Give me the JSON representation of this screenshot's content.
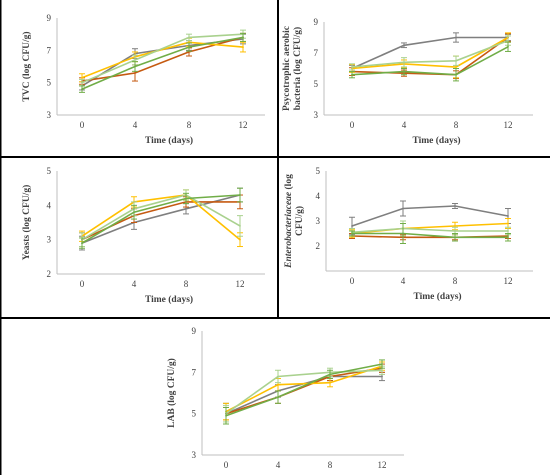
{
  "chart_data": [
    {
      "id": "tvc",
      "type": "line",
      "ylabel": [
        "TVC (log CFU/g)"
      ],
      "xlabel": "Time (days)",
      "x": [
        "0",
        "4",
        "8",
        "12"
      ],
      "ylim": [
        3,
        9
      ],
      "yticks": [
        "3",
        "5",
        "7",
        "9"
      ],
      "series": [
        {
          "color": "#7f7f7f",
          "values": [
            4.8,
            6.8,
            7.3,
            7.7
          ],
          "err": [
            0.25,
            0.3,
            0.3,
            0.3
          ]
        },
        {
          "color": "#c55a11",
          "values": [
            5.1,
            5.6,
            6.9,
            7.8
          ],
          "err": [
            0.2,
            0.5,
            0.25,
            0.25
          ]
        },
        {
          "color": "#ffc000",
          "values": [
            5.3,
            6.6,
            7.5,
            7.2
          ],
          "err": [
            0.25,
            0.3,
            0.25,
            0.3
          ]
        },
        {
          "color": "#a9d18e",
          "values": [
            5.0,
            6.4,
            7.8,
            8.0
          ],
          "err": [
            0.2,
            0.3,
            0.2,
            0.25
          ]
        },
        {
          "color": "#70ad47",
          "values": [
            4.6,
            6.0,
            7.2,
            7.8
          ],
          "err": [
            0.2,
            0.3,
            0.25,
            0.25
          ]
        }
      ]
    },
    {
      "id": "psychrotrophic",
      "type": "line",
      "ylabel": [
        "Psycotrophic aerobic",
        "bacteria (log CFU/g)"
      ],
      "xlabel": "Time (days)",
      "x": [
        "0",
        "4",
        "8",
        "12"
      ],
      "ylim": [
        3,
        9
      ],
      "yticks": [
        "3",
        "5",
        "7",
        "9"
      ],
      "series": [
        {
          "color": "#7f7f7f",
          "values": [
            6.0,
            7.5,
            8.0,
            8.0
          ],
          "err": [
            0.2,
            0.15,
            0.3,
            0.2
          ]
        },
        {
          "color": "#c55a11",
          "values": [
            5.8,
            5.7,
            5.6,
            8.0
          ],
          "err": [
            0.25,
            0.2,
            0.25,
            0.25
          ]
        },
        {
          "color": "#ffc000",
          "values": [
            6.0,
            6.3,
            6.1,
            8.0
          ],
          "err": [
            0.25,
            0.25,
            0.7,
            0.3
          ]
        },
        {
          "color": "#a9d18e",
          "values": [
            6.1,
            6.4,
            6.5,
            7.8
          ],
          "err": [
            0.2,
            0.3,
            0.3,
            0.3
          ]
        },
        {
          "color": "#70ad47",
          "values": [
            5.6,
            5.8,
            5.6,
            7.4
          ],
          "err": [
            0.2,
            0.2,
            0.4,
            0.3
          ]
        }
      ]
    },
    {
      "id": "yeasts",
      "type": "line",
      "ylabel": [
        "Yeasts (log CFU/g)"
      ],
      "xlabel": "Time (days)",
      "x": [
        "0",
        "4",
        "8",
        "12"
      ],
      "ylim": [
        2,
        5
      ],
      "yticks": [
        "2",
        "3",
        "4",
        "5"
      ],
      "series": [
        {
          "color": "#7f7f7f",
          "values": [
            2.9,
            3.5,
            3.9,
            4.3
          ],
          "err": [
            0.2,
            0.2,
            0.15,
            0.2
          ]
        },
        {
          "color": "#c55a11",
          "values": [
            3.0,
            3.7,
            4.1,
            4.1
          ],
          "err": [
            0.2,
            0.2,
            0.15,
            0.2
          ]
        },
        {
          "color": "#ffc000",
          "values": [
            3.1,
            4.1,
            4.3,
            3.0
          ],
          "err": [
            0.15,
            0.15,
            0.15,
            0.2
          ]
        },
        {
          "color": "#a9d18e",
          "values": [
            3.0,
            3.9,
            4.3,
            3.4
          ],
          "err": [
            0.2,
            0.2,
            0.15,
            0.3
          ]
        },
        {
          "color": "#70ad47",
          "values": [
            2.9,
            3.8,
            4.2,
            4.3
          ],
          "err": [
            0.15,
            0.2,
            0.15,
            0.2
          ]
        }
      ]
    },
    {
      "id": "enterobacteriaceae",
      "type": "line",
      "ylabel": [
        "Enterobacteriaceae (log",
        "CFU/g)"
      ],
      "ylabel_italic_word": "Enterobacteriaceae",
      "xlabel": "Time (days)",
      "x": [
        "0",
        "4",
        "8",
        "12"
      ],
      "ylim": [
        1,
        5
      ],
      "yticks": [
        "2",
        "3",
        "4",
        "5"
      ],
      "series": [
        {
          "color": "#7f7f7f",
          "values": [
            2.8,
            3.5,
            3.6,
            3.2
          ],
          "err": [
            0.35,
            0.3,
            0.1,
            0.3
          ]
        },
        {
          "color": "#c55a11",
          "values": [
            2.4,
            2.35,
            2.35,
            2.4
          ],
          "err": [
            0.1,
            0.1,
            0.1,
            0.1
          ]
        },
        {
          "color": "#ffc000",
          "values": [
            2.5,
            2.7,
            2.8,
            2.9
          ],
          "err": [
            0.15,
            0.2,
            0.15,
            0.2
          ]
        },
        {
          "color": "#a9d18e",
          "values": [
            2.55,
            2.7,
            2.6,
            2.6
          ],
          "err": [
            0.15,
            0.3,
            0.15,
            0.15
          ]
        },
        {
          "color": "#70ad47",
          "values": [
            2.5,
            2.5,
            2.35,
            2.35
          ],
          "err": [
            0.1,
            0.4,
            0.15,
            0.15
          ]
        }
      ]
    },
    {
      "id": "lab",
      "type": "line",
      "ylabel": [
        "LAB (log CFU/g)"
      ],
      "xlabel": "Time (days)",
      "x": [
        "0",
        "4",
        "8",
        "12"
      ],
      "ylim": [
        3,
        9
      ],
      "yticks": [
        "3",
        "5",
        "7",
        "9"
      ],
      "series": [
        {
          "color": "#7f7f7f",
          "values": [
            5.0,
            6.1,
            6.8,
            6.8
          ],
          "err": [
            0.5,
            0.3,
            0.2,
            0.2
          ]
        },
        {
          "color": "#c55a11",
          "values": [
            5.0,
            5.8,
            6.8,
            7.2
          ],
          "err": [
            0.3,
            0.3,
            0.2,
            0.2
          ]
        },
        {
          "color": "#ffc000",
          "values": [
            5.1,
            6.4,
            6.5,
            7.3
          ],
          "err": [
            0.4,
            0.3,
            0.2,
            0.2
          ]
        },
        {
          "color": "#a9d18e",
          "values": [
            5.0,
            6.8,
            7.0,
            7.1
          ],
          "err": [
            0.4,
            0.3,
            0.2,
            0.2
          ]
        },
        {
          "color": "#70ad47",
          "values": [
            4.9,
            5.8,
            6.9,
            7.4
          ],
          "err": [
            0.4,
            0.3,
            0.2,
            0.2
          ]
        }
      ]
    }
  ]
}
